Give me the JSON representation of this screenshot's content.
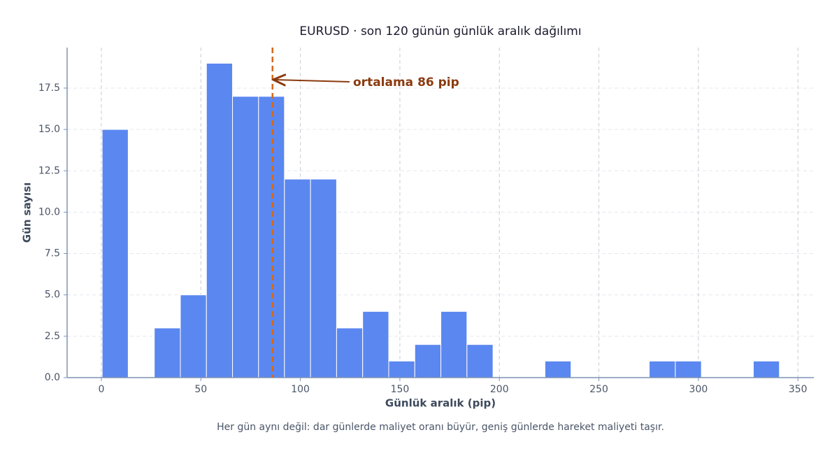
{
  "chart_data": {
    "type": "histogram",
    "title": "EURUSD · son 120 günün günlük aralık dağılımı",
    "xlabel": "Günlük aralık (pip)",
    "ylabel": "Gün sayısı",
    "caption": "Her gün aynı değil: dar günlerde maliyet oranı büyür, geniş günlerde hareket maliyeti taşır.",
    "bins": [
      0.4,
      13.5,
      26.6,
      39.7,
      52.8,
      65.9,
      79.0,
      92.0,
      105.1,
      118.2,
      131.3,
      144.4,
      157.5,
      170.6,
      183.7,
      196.8,
      209.8,
      222.9,
      236.0,
      249.1,
      262.2,
      275.3,
      288.4,
      301.5,
      314.6,
      327.6,
      340.7
    ],
    "values": [
      15,
      0,
      3,
      5,
      19,
      17,
      17,
      12,
      12,
      3,
      4,
      1,
      2,
      4,
      2,
      0,
      0,
      1,
      0,
      0,
      0,
      1,
      1,
      0,
      0,
      1
    ],
    "color": "#5b87f0",
    "mean": 86,
    "mean_color": "#d2691e",
    "annotation": "ortalama 86 pip",
    "xlim": [
      -17.2,
      358
    ],
    "ylim": [
      0,
      19.95
    ],
    "xticks": [
      0,
      50,
      100,
      150,
      200,
      250,
      300,
      350
    ],
    "yticks": [
      {
        "value": 0,
        "label": "0.0"
      },
      {
        "value": 2.5,
        "label": "2.5"
      },
      {
        "value": 5,
        "label": "5.0"
      },
      {
        "value": 7.5,
        "label": "7.5"
      },
      {
        "value": 10,
        "label": "10.0"
      },
      {
        "value": 12.5,
        "label": "12.5"
      },
      {
        "value": 15,
        "label": "15.0"
      },
      {
        "value": 17.5,
        "label": "17.5"
      }
    ],
    "grid": true
  }
}
